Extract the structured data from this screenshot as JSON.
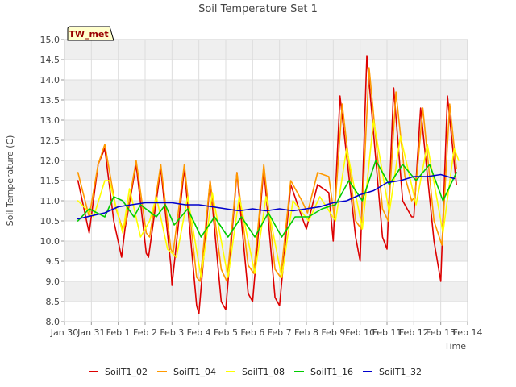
{
  "chart_data": {
    "type": "line",
    "title": "Soil Temperature Set 1",
    "xlabel": "Time",
    "ylabel": "Soil Temperature (C)",
    "annotation": "TW_met",
    "xlim": [
      "Jan 30",
      "Feb 14"
    ],
    "ylim": [
      8.0,
      15.0
    ],
    "x_ticks": [
      "Jan 30",
      "Jan 31",
      "Feb 1",
      "Feb 2",
      "Feb 3",
      "Feb 4",
      "Feb 5",
      "Feb 6",
      "Feb 7",
      "Feb 8",
      "Feb 9",
      "Feb 10",
      "Feb 11",
      "Feb 12",
      "Feb 13",
      "Feb 14"
    ],
    "y_ticks": [
      8.0,
      8.5,
      9.0,
      9.5,
      10.0,
      10.5,
      11.0,
      11.5,
      12.0,
      12.5,
      13.0,
      13.5,
      14.0,
      14.5,
      15.0
    ],
    "grid": true,
    "legend_position": "bottom",
    "series": [
      {
        "name": "SoilT1_02",
        "color": "#dd0000",
        "x": [
          "Jan 30 12:00",
          "Jan 30 22:00",
          "Jan 31 06:00",
          "Jan 31 12:00",
          "Jan 31 20:00",
          "Feb 1 03:00",
          "Feb 1 06:00",
          "Feb 1 16:00",
          "Feb 2 01:00",
          "Feb 2 03:00",
          "Feb 2 14:00",
          "Feb 2 23:00",
          "Feb 3 00:00",
          "Feb 3 11:00",
          "Feb 3 22:00",
          "Feb 4 00:00",
          "Feb 4 10:00",
          "Feb 4 20:00",
          "Feb 5 00:00",
          "Feb 5 10:00",
          "Feb 5 20:00",
          "Feb 6 00:00",
          "Feb 6 10:00",
          "Feb 6 20:00",
          "Feb 7 00:00",
          "Feb 7 10:00",
          "Feb 7 20:00",
          "Feb 8 00:00",
          "Feb 8 10:00",
          "Feb 8 20:00",
          "Feb 9 00:00",
          "Feb 9 06:00",
          "Feb 9 20:00",
          "Feb 10 00:00",
          "Feb 10 06:00",
          "Feb 10 20:00",
          "Feb 11 00:00",
          "Feb 11 06:00",
          "Feb 11 14:00",
          "Feb 11 22:00",
          "Feb 12 00:00",
          "Feb 12 06:00",
          "Feb 12 18:00",
          "Feb 13 00:00",
          "Feb 13 06:00",
          "Feb 13 14:00"
        ],
        "values": [
          11.5,
          10.2,
          11.9,
          12.3,
          10.5,
          9.6,
          10.3,
          11.9,
          9.7,
          9.6,
          11.8,
          9.4,
          8.9,
          11.8,
          8.4,
          8.2,
          11.5,
          8.5,
          8.3,
          11.7,
          8.7,
          8.5,
          11.8,
          8.6,
          8.4,
          11.4,
          10.6,
          10.3,
          11.4,
          11.2,
          10.0,
          13.6,
          10.1,
          9.5,
          14.6,
          10.1,
          9.8,
          13.8,
          11.0,
          10.6,
          10.6,
          13.3,
          10.0,
          9.0,
          13.6,
          11.4
        ]
      },
      {
        "name": "SoilT1_04",
        "color": "#ff9900",
        "x": [
          "Jan 30 12:00",
          "Jan 30 22:00",
          "Jan 31 06:00",
          "Jan 31 12:00",
          "Jan 31 22:00",
          "Feb 1 04:00",
          "Feb 1 06:00",
          "Feb 1 16:00",
          "Feb 2 01:00",
          "Feb 2 04:00",
          "Feb 2 14:00",
          "Feb 2 23:00",
          "Feb 3 01:00",
          "Feb 3 11:00",
          "Feb 3 22:00",
          "Feb 4 01:00",
          "Feb 4 10:00",
          "Feb 4 20:00",
          "Feb 5 01:00",
          "Feb 5 10:00",
          "Feb 5 20:00",
          "Feb 6 01:00",
          "Feb 6 10:00",
          "Feb 6 20:00",
          "Feb 7 01:00",
          "Feb 7 10:00",
          "Feb 7 20:00",
          "Feb 8 01:00",
          "Feb 8 10:00",
          "Feb 8 20:00",
          "Feb 9 01:00",
          "Feb 9 08:00",
          "Feb 9 20:00",
          "Feb 10 01:00",
          "Feb 10 08:00",
          "Feb 10 20:00",
          "Feb 11 01:00",
          "Feb 11 08:00",
          "Feb 11 16:00",
          "Feb 11 22:00",
          "Feb 12 01:00",
          "Feb 12 08:00",
          "Feb 12 18:00",
          "Feb 13 01:00",
          "Feb 13 08:00",
          "Feb 13 14:00"
        ],
        "values": [
          11.7,
          10.6,
          11.9,
          12.4,
          10.8,
          10.3,
          10.4,
          12.0,
          10.2,
          10.1,
          11.9,
          9.8,
          9.7,
          11.9,
          9.1,
          9.0,
          11.5,
          9.3,
          9.0,
          11.7,
          9.4,
          9.2,
          11.9,
          9.3,
          9.1,
          11.5,
          11.0,
          10.7,
          11.7,
          11.6,
          10.6,
          13.4,
          10.5,
          10.3,
          14.3,
          10.8,
          10.5,
          13.7,
          11.6,
          11.0,
          11.1,
          13.3,
          10.5,
          9.9,
          13.4,
          11.8
        ]
      },
      {
        "name": "SoilT1_08",
        "color": "#ffff00",
        "x": [
          "Jan 30 12:00",
          "Jan 31 02:00",
          "Jan 31 12:00",
          "Jan 31 16:00",
          "Feb 1 04:00",
          "Feb 1 10:00",
          "Feb 1 20:00",
          "Feb 2 04:00",
          "Feb 2 10:00",
          "Feb 2 20:00",
          "Feb 3 04:00",
          "Feb 3 14:00",
          "Feb 4 02:00",
          "Feb 4 12:00",
          "Feb 5 02:00",
          "Feb 5 12:00",
          "Feb 6 02:00",
          "Feb 6 12:00",
          "Feb 7 02:00",
          "Feb 7 12:00",
          "Feb 8 02:00",
          "Feb 8 12:00",
          "Feb 9 02:00",
          "Feb 9 12:00",
          "Feb 10 02:00",
          "Feb 10 12:00",
          "Feb 11 02:00",
          "Feb 11 12:00",
          "Feb 12 02:00",
          "Feb 12 12:00",
          "Feb 13 02:00",
          "Feb 13 12:00",
          "Feb 13 16:00"
        ],
        "values": [
          11.0,
          10.6,
          11.5,
          11.5,
          10.2,
          11.3,
          10.1,
          10.5,
          11.1,
          9.8,
          9.6,
          11.1,
          9.1,
          11.2,
          9.1,
          11.1,
          9.2,
          11.1,
          9.1,
          11.0,
          10.5,
          11.1,
          10.5,
          12.3,
          10.3,
          13.0,
          10.7,
          12.6,
          10.9,
          12.4,
          10.2,
          12.3,
          12.0
        ]
      },
      {
        "name": "SoilT1_16",
        "color": "#00cc00",
        "x": [
          "Jan 30 12:00",
          "Jan 30 22:00",
          "Jan 31 12:00",
          "Jan 31 20:00",
          "Feb 1 04:00",
          "Feb 1 14:00",
          "Feb 1 20:00",
          "Feb 2 10:00",
          "Feb 2 18:00",
          "Feb 3 02:00",
          "Feb 3 14:00",
          "Feb 4 02:00",
          "Feb 4 14:00",
          "Feb 5 02:00",
          "Feb 5 14:00",
          "Feb 6 02:00",
          "Feb 6 14:00",
          "Feb 7 02:00",
          "Feb 7 14:00",
          "Feb 8 02:00",
          "Feb 8 14:00",
          "Feb 9 02:00",
          "Feb 9 14:00",
          "Feb 10 02:00",
          "Feb 10 14:00",
          "Feb 11 02:00",
          "Feb 11 14:00",
          "Feb 12 02:00",
          "Feb 12 14:00",
          "Feb 13 02:00",
          "Feb 13 14:00"
        ],
        "values": [
          10.5,
          10.8,
          10.6,
          11.1,
          11.0,
          10.6,
          10.9,
          10.6,
          10.9,
          10.4,
          10.8,
          10.1,
          10.6,
          10.1,
          10.6,
          10.1,
          10.7,
          10.1,
          10.6,
          10.6,
          10.8,
          10.9,
          11.5,
          11.0,
          12.0,
          11.4,
          11.9,
          11.5,
          11.9,
          11.0,
          11.7
        ]
      },
      {
        "name": "SoilT1_32",
        "color": "#0000cc",
        "x": [
          "Jan 30 12:00",
          "Jan 31 12:00",
          "Feb 1 00:00",
          "Feb 1 12:00",
          "Feb 2 00:00",
          "Feb 3 00:00",
          "Feb 3 12:00",
          "Feb 4 00:00",
          "Feb 5 00:00",
          "Feb 5 12:00",
          "Feb 6 00:00",
          "Feb 6 12:00",
          "Feb 7 00:00",
          "Feb 7 12:00",
          "Feb 8 00:00",
          "Feb 8 12:00",
          "Feb 9 00:00",
          "Feb 9 12:00",
          "Feb 10 00:00",
          "Feb 10 12:00",
          "Feb 11 00:00",
          "Feb 11 12:00",
          "Feb 12 00:00",
          "Feb 12 12:00",
          "Feb 13 00:00",
          "Feb 13 12:00"
        ],
        "values": [
          10.55,
          10.7,
          10.85,
          10.9,
          10.95,
          10.95,
          10.9,
          10.9,
          10.8,
          10.75,
          10.8,
          10.75,
          10.8,
          10.75,
          10.8,
          10.85,
          10.95,
          11.0,
          11.15,
          11.25,
          11.45,
          11.5,
          11.6,
          11.6,
          11.65,
          11.55
        ]
      }
    ]
  }
}
